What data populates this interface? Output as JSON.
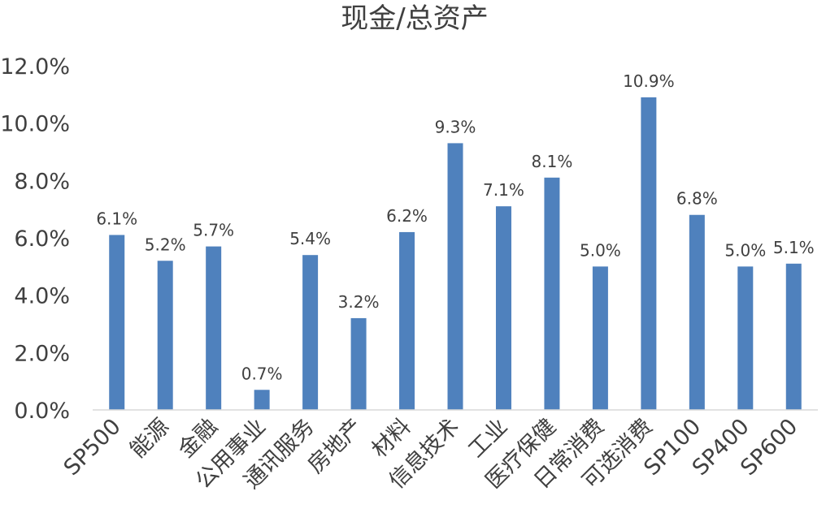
{
  "chart_data": {
    "type": "bar",
    "title": "现金/总资产",
    "xlabel": "",
    "ylabel": "",
    "categories": [
      "SP500",
      "能源",
      "金融",
      "公用事业",
      "通讯服务",
      "房地产",
      "材料",
      "信息技术",
      "工业",
      "医疗保健",
      "日常消费",
      "可选消费",
      "SP100",
      "SP400",
      "SP600"
    ],
    "values": [
      6.1,
      5.2,
      5.7,
      0.7,
      5.4,
      3.2,
      6.2,
      9.3,
      7.1,
      8.1,
      5.0,
      10.9,
      6.8,
      5.0,
      5.1
    ],
    "data_labels": [
      "6.1%",
      "5.2%",
      "5.7%",
      "0.7%",
      "5.4%",
      "3.2%",
      "6.2%",
      "9.3%",
      "7.1%",
      "8.1%",
      "5.0%",
      "10.9%",
      "6.8%",
      "5.0%",
      "5.1%"
    ],
    "ylim": [
      0,
      12
    ],
    "yticks": [
      0,
      2,
      4,
      6,
      8,
      10,
      12
    ],
    "ytick_labels": [
      "0.0%",
      "2.0%",
      "4.0%",
      "6.0%",
      "8.0%",
      "10.0%",
      "12.0%"
    ],
    "grid": false,
    "legend": "none",
    "colors": {
      "bar": "#4f81bd",
      "text": "#404040",
      "axis": "#d9d9d9"
    }
  }
}
